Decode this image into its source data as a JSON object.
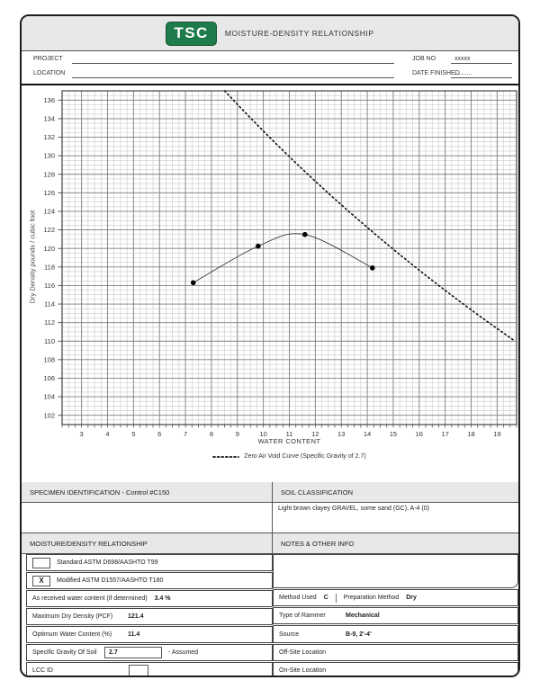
{
  "header": {
    "logo_text": "TSC",
    "logo_color": "#1e7b4a",
    "title": "MOISTURE-DENSITY RELATIONSHIP"
  },
  "info": {
    "project_label": "PROJECT",
    "project_value": "",
    "location_label": "LOCATION",
    "location_value": "",
    "job_no_label": "JOB NO",
    "job_no_value": "xxxxx",
    "date_finished_label": "DATE FINISHED",
    "date_finished_value": ".........."
  },
  "chart_data": {
    "type": "line",
    "title": "",
    "xlabel": "WATER CONTENT",
    "ylabel": "Dry Density pounds / cubic foot",
    "xlim": [
      2.25,
      19.75
    ],
    "ylim": [
      101,
      137
    ],
    "x_ticks": [
      3,
      4,
      5,
      6,
      7,
      8,
      9,
      10,
      11,
      12,
      13,
      14,
      15,
      16,
      17,
      18,
      19
    ],
    "y_ticks": [
      102,
      104,
      106,
      108,
      110,
      112,
      114,
      116,
      118,
      120,
      122,
      124,
      126,
      128,
      130,
      132,
      134,
      136
    ],
    "x_minor_step": 0.25,
    "y_minor_step": 0.5,
    "grid": true,
    "colors": {
      "grid_minor": "#c9c9c9",
      "grid_major": "#7d7d7d",
      "border": "#444444",
      "curve": "#3a3a3a",
      "point": "#000000",
      "zav": "#111111"
    },
    "series": [
      {
        "name": "Compaction test points",
        "type": "curve_points",
        "x": [
          7.3,
          9.8,
          11.6,
          14.2
        ],
        "y": [
          116.3,
          120.25,
          121.5,
          117.9
        ]
      },
      {
        "name": "Zero Air Void Curve (Specific Gravity of 2.7)",
        "type": "zero_air_void",
        "specific_gravity": 2.7,
        "water_unit_weight_pcf": 62.4
      }
    ],
    "legend": {
      "label": "Zero Air Void Curve (Specific Gravity of 2.7)",
      "position": "bottom-center"
    }
  },
  "specimen": {
    "header": "SPECIMEN IDENTIFICATION - Control #C150",
    "value": ""
  },
  "soil": {
    "header": "SOIL CLASSIFICATION",
    "value": "Light brown clayey GRAVEL, some sand (GC), A-4 (0)"
  },
  "mdr": {
    "header": "MOISTURE/DENSITY RELATIONSHIP",
    "standard": {
      "checked": "",
      "label": "Standard ASTM D698/AASHTO T99"
    },
    "modified": {
      "checked": "X",
      "label": "Modified ASTM D1557/AASHTO T180"
    },
    "as_received": {
      "label": "As received water content (if determined)",
      "value": "3.4 %"
    },
    "max_dry_density": {
      "label": "Maximum Dry Density (PCF)",
      "value": "121.4"
    },
    "optimum_water": {
      "label": "Optimum Water Content (%)",
      "value": "11.4"
    },
    "specific_gravity": {
      "label": "Specific Gravity Of Soil",
      "value": "2.7",
      "suffix": "- Assumed"
    },
    "lcc_id": {
      "label": "LCC ID",
      "value": ""
    }
  },
  "notes": {
    "header": "NOTES & OTHER INFO",
    "notes_value": "",
    "method_used": {
      "label": "Method Used",
      "value": "C"
    },
    "preparation": {
      "label": "Preparation Method",
      "value": "Dry"
    },
    "rammer": {
      "label": "Type of Rammer",
      "value": "Mechanical"
    },
    "source": {
      "label": "Source",
      "value": "B-9, 2'-4'"
    },
    "offsite": {
      "label": "Off-Site Location",
      "value": ""
    },
    "onsite": {
      "label": "On-Site Location",
      "value": ""
    }
  }
}
